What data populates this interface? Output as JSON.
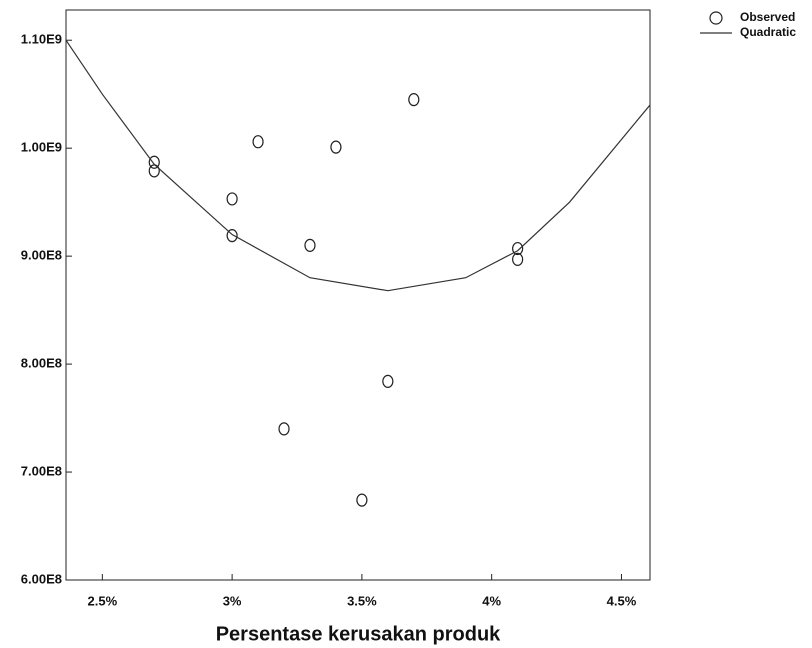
{
  "chart_data": {
    "type": "scatter",
    "x_label": "Persentase kerusakan produk",
    "xlim": [
      2.36,
      4.61
    ],
    "ylim": [
      600000000,
      1128000000
    ],
    "xticks": [
      {
        "value": 2.5,
        "label": "2.5%"
      },
      {
        "value": 3,
        "label": "3%"
      },
      {
        "value": 3.5,
        "label": "3.5%"
      },
      {
        "value": 4,
        "label": "4%"
      },
      {
        "value": 4.5,
        "label": "4.5%"
      }
    ],
    "yticks": [
      {
        "value": 600000000,
        "label": "6.00E8"
      },
      {
        "value": 700000000,
        "label": "7.00E8"
      },
      {
        "value": 800000000,
        "label": "8.00E8"
      },
      {
        "value": 900000000,
        "label": "9.00E8"
      },
      {
        "value": 1000000000,
        "label": "1.00E9"
      },
      {
        "value": 1100000000,
        "label": "1.10E9"
      }
    ],
    "legend": "top-right",
    "series": [
      {
        "name": "Observed",
        "type": "scatter",
        "color": "#222222",
        "x": [
          2.7,
          2.7,
          3.0,
          3.0,
          3.1,
          3.3,
          3.4,
          3.7,
          4.1,
          4.1,
          3.6,
          3.2,
          3.5
        ],
        "values": [
          987000000,
          979000000,
          953000000,
          919000000,
          1006000000,
          910000000,
          1001000000,
          1045000000,
          907000000,
          897000000,
          784000000,
          740000000,
          674000000
        ]
      },
      {
        "name": "Quadratic",
        "type": "line",
        "color": "#333333",
        "x": [
          2.36,
          2.5,
          2.7,
          3.0,
          3.3,
          3.6,
          3.9,
          4.1,
          4.3,
          4.61
        ],
        "values": [
          1100000000,
          1050000000,
          985000000,
          920000000,
          880000000,
          868000000,
          880000000,
          905000000,
          950000000,
          1040000000
        ]
      }
    ]
  }
}
